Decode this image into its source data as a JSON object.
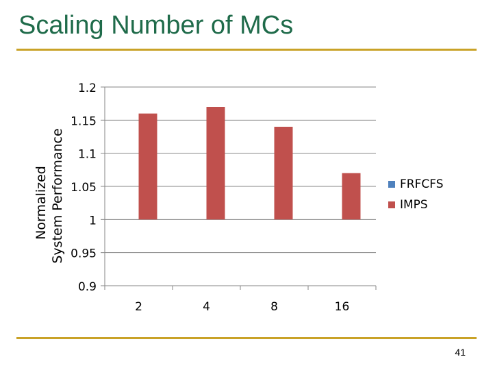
{
  "slide": {
    "title": "Scaling Number of MCs",
    "page_number": "41",
    "accent_color": "#c9a227",
    "title_color": "#1f6b4a"
  },
  "chart_data": {
    "type": "bar",
    "categories": [
      "2",
      "4",
      "8",
      "16"
    ],
    "series": [
      {
        "name": "FRFCFS",
        "color": "#4f81bd",
        "values": [
          1.0,
          1.0,
          1.0,
          1.0
        ]
      },
      {
        "name": "IMPS",
        "color": "#c0504d",
        "values": [
          1.16,
          1.17,
          1.14,
          1.07
        ]
      }
    ],
    "ylabel_lines": [
      "Normalized",
      "System Performance"
    ],
    "ylim": [
      0.9,
      1.2
    ],
    "yticks": [
      "0.9",
      "0.95",
      "1",
      "1.05",
      "1.1",
      "1.15",
      "1.2"
    ],
    "grid": true,
    "legend": "right"
  }
}
